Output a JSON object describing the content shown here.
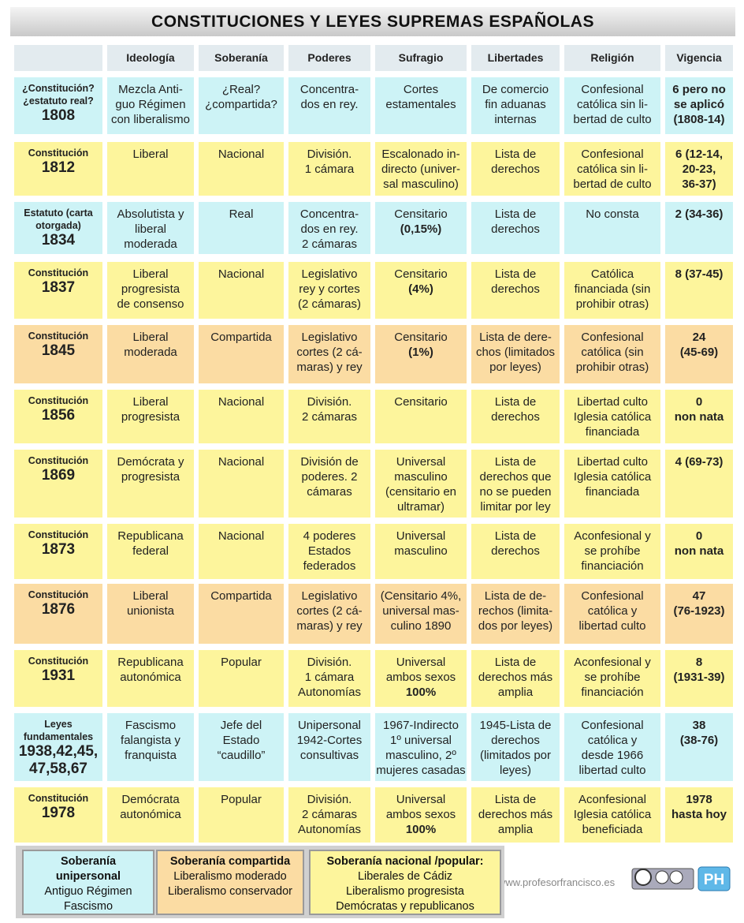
{
  "header": {
    "title": "CONSTITUCIONES Y LEYES SUPREMAS ESPAÑOLAS"
  },
  "table": {
    "columns": [
      "Ideología",
      "Soberanía",
      "Poderes",
      "Sufragio",
      "Libertades",
      "Religión",
      "Vigencia"
    ],
    "rows": [
      {
        "color": "#cdf3f6",
        "cells": [
          [
            "¿Constitución?",
            "¿estatuto real?",
            "1808"
          ],
          [
            "Mezcla Anti-",
            "guo Régimen",
            "con liberalismo"
          ],
          [
            "¿Real?",
            "¿compartida?"
          ],
          [
            "Concentra-",
            "dos en rey."
          ],
          [
            "Cortes",
            "estamentales"
          ],
          [
            "De comercio",
            "fin aduanas",
            "internas"
          ],
          [
            "Confesional",
            "católica sin li-",
            "bertad de culto"
          ],
          [
            "6 pero no",
            "se aplicó",
            "(1808-14)"
          ]
        ]
      },
      {
        "color": "#fdf59c",
        "cells": [
          [
            "Constitución",
            "1812"
          ],
          [
            "Liberal"
          ],
          [
            "Nacional"
          ],
          [
            "División.",
            "1 cámara"
          ],
          [
            "Escalonado in-",
            "directo (univer-",
            "sal masculino)"
          ],
          [
            "Lista de",
            "derechos"
          ],
          [
            "Confesional",
            "católica sin li-",
            "bertad de culto"
          ],
          [
            "6 (12-14,",
            "20-23,",
            "36-37)"
          ]
        ]
      },
      {
        "color": "#cdf3f6",
        "cells": [
          [
            "Estatuto (carta",
            "otorgada)",
            "1834"
          ],
          [
            "Absolutista y",
            "liberal",
            "moderada"
          ],
          [
            "Real"
          ],
          [
            "Concentra-",
            "dos en rey.",
            "2 cámaras"
          ],
          [
            "Censitario",
            "(0,15%)"
          ],
          [
            "Lista de",
            "derechos"
          ],
          [
            "No consta"
          ],
          [
            "2 (34-36)"
          ]
        ]
      },
      {
        "color": "#fdf59c",
        "cells": [
          [
            "Constitución",
            "1837"
          ],
          [
            "Liberal",
            "progresista",
            "de consenso"
          ],
          [
            "Nacional"
          ],
          [
            "Legislativo",
            "rey y cortes",
            "(2 cámaras)"
          ],
          [
            "Censitario",
            "(4%)"
          ],
          [
            "Lista de",
            "derechos"
          ],
          [
            "Católica",
            "financiada (sin",
            "prohibir otras)"
          ],
          [
            "8 (37-45)"
          ]
        ]
      },
      {
        "color": "#fbdca3",
        "cells": [
          [
            "Constitución",
            "1845"
          ],
          [
            "Liberal",
            "moderada"
          ],
          [
            "Compartida"
          ],
          [
            "Legislativo",
            "cortes (2 cá-",
            "maras) y rey"
          ],
          [
            "Censitario",
            "(1%)"
          ],
          [
            "Lista de dere-",
            "chos (limitados",
            "por leyes)"
          ],
          [
            "Confesional",
            "católica (sin",
            "prohibir otras)"
          ],
          [
            "24",
            "(45-69)"
          ]
        ]
      },
      {
        "color": "#fdf59c",
        "cells": [
          [
            "Constitución",
            "1856"
          ],
          [
            "Liberal",
            "progresista"
          ],
          [
            "Nacional"
          ],
          [
            "División.",
            "2 cámaras"
          ],
          [
            "Censitario"
          ],
          [
            "Lista de",
            "derechos"
          ],
          [
            "Libertad culto",
            "Iglesia católica",
            "financiada"
          ],
          [
            "0",
            "non nata"
          ]
        ]
      },
      {
        "color": "#fdf59c",
        "cells": [
          [
            "Constitución",
            "1869"
          ],
          [
            "Demócrata y",
            "progresista"
          ],
          [
            "Nacional"
          ],
          [
            "División de",
            "poderes. 2",
            "cámaras"
          ],
          [
            "Universal",
            "masculino",
            "(censitario en",
            "ultramar)"
          ],
          [
            "Lista de",
            "derechos que",
            "no se pueden",
            "limitar por ley"
          ],
          [
            "Libertad culto",
            "Iglesia católica",
            "financiada"
          ],
          [
            "4 (69-73)"
          ]
        ]
      },
      {
        "color": "#fdf59c",
        "cells": [
          [
            "Constitución",
            "1873"
          ],
          [
            "Republicana",
            "federal"
          ],
          [
            "Nacional"
          ],
          [
            "4 poderes",
            "Estados",
            "federados"
          ],
          [
            "Universal",
            "masculino"
          ],
          [
            "Lista de",
            "derechos"
          ],
          [
            "Aconfesional y",
            "se prohíbe",
            "financiación"
          ],
          [
            "0",
            "non nata"
          ]
        ]
      },
      {
        "color": "#fbdca3",
        "cells": [
          [
            "Constitución",
            "1876"
          ],
          [
            "Liberal",
            "unionista"
          ],
          [
            "Compartida"
          ],
          [
            "Legislativo",
            "cortes (2 cá-",
            "maras) y rey"
          ],
          [
            "(Censitario 4%,",
            "universal  mas-",
            "culino 1890"
          ],
          [
            "Lista de de-",
            "rechos (limita-",
            "dos por leyes)"
          ],
          [
            "Confesional",
            "católica y",
            "libertad culto"
          ],
          [
            "47",
            "(76-1923)"
          ]
        ]
      },
      {
        "color": "#fdf59c",
        "cells": [
          [
            "Constitución",
            "1931"
          ],
          [
            "Republicana",
            "autonómica"
          ],
          [
            "Popular"
          ],
          [
            "División.",
            "1 cámara",
            "Autonomías"
          ],
          [
            "Universal",
            "ambos sexos",
            "100%"
          ],
          [
            "Lista de",
            "derechos más",
            "amplia"
          ],
          [
            "Aconfesional y",
            "se prohíbe",
            "financiación"
          ],
          [
            "8",
            "(1931-39)"
          ]
        ]
      },
      {
        "color": "#cdf3f6",
        "cells": [
          [
            "Leyes",
            "fundamentales",
            "1938,42,45,",
            "47,58,67"
          ],
          [
            "Fascismo",
            "falangista y",
            "franquista"
          ],
          [
            "Jefe del",
            "Estado",
            "“caudillo”"
          ],
          [
            "Unipersonal",
            "1942-Cortes",
            "consultivas"
          ],
          [
            "1967-Indirecto",
            "1º universal",
            "masculino, 2º",
            "mujeres casadas"
          ],
          [
            "1945-Lista de",
            "derechos",
            "(limitados por",
            "leyes)"
          ],
          [
            "Confesional",
            "católica y",
            "desde 1966",
            "libertad culto"
          ],
          [
            "38",
            "(38-76)"
          ]
        ]
      },
      {
        "color": "#fdf59c",
        "cells": [
          [
            "Constitución",
            "1978"
          ],
          [
            "Demócrata",
            "autonómica"
          ],
          [
            "Popular"
          ],
          [
            "División.",
            "2 cámaras",
            "Autonomías"
          ],
          [
            "Universal",
            "ambos sexos",
            "100%"
          ],
          [
            "Lista de",
            "derechos más",
            "amplia"
          ],
          [
            "Aconfesional",
            "Iglesia católica",
            "beneficiada"
          ],
          [
            "1978",
            "hasta hoy"
          ]
        ]
      }
    ]
  },
  "legend": [
    {
      "color": "#cdf3f6",
      "title": [
        "Soberanía",
        "unipersonal"
      ],
      "items": [
        "Antiguo Régimen",
        "Fascismo"
      ]
    },
    {
      "color": "#fbdca3",
      "title": [
        "Soberanía compartida"
      ],
      "items": [
        "Liberalismo moderado",
        "Liberalismo conservador"
      ]
    },
    {
      "color": "#fdf59c",
      "title": [
        "Soberanía nacional /popular:"
      ],
      "items": [
        "Liberales de Cádiz",
        "Liberalismo progresista",
        "Demócratas y republicanos"
      ]
    }
  ],
  "footer": {
    "website": "www.profesorfrancisco.es",
    "logo": "PH"
  }
}
